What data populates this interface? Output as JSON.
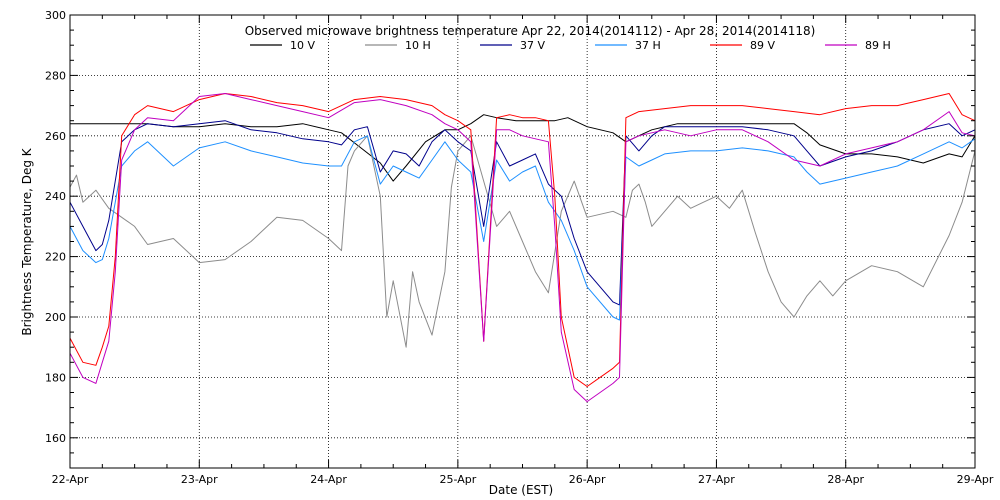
{
  "chart_data": {
    "type": "line",
    "title": "Observed microwave brightness temperature Apr 22, 2014(2014112) - Apr 28, 2014(2014118)",
    "xlabel": "Date (EST)",
    "ylabel": "Brightness Temperature, Deg K",
    "xlim": [
      0,
      7
    ],
    "ylim": [
      150,
      300
    ],
    "yticks": [
      160,
      180,
      200,
      220,
      240,
      260,
      280,
      300
    ],
    "ytick_labels": [
      "160",
      "180",
      "200",
      "220",
      "240",
      "260",
      "280",
      "300"
    ],
    "xticks": [
      0,
      1,
      2,
      3,
      4,
      5,
      6,
      7
    ],
    "xtick_labels": [
      "22-Apr",
      "23-Apr",
      "24-Apr",
      "25-Apr",
      "26-Apr",
      "27-Apr",
      "28-Apr",
      "29-Apr"
    ],
    "x_unit": "days since 22-Apr 00:00 EST",
    "grid": true,
    "legend_position": "top",
    "series": [
      {
        "name": "10 V",
        "color": "#000000",
        "x": [
          0,
          0.2,
          0.4,
          0.6,
          0.8,
          1.0,
          1.2,
          1.4,
          1.6,
          1.8,
          2.0,
          2.1,
          2.25,
          2.4,
          2.5,
          2.6,
          2.75,
          2.9,
          3.0,
          3.1,
          3.2,
          3.3,
          3.45,
          3.6,
          3.75,
          3.85,
          4.0,
          4.2,
          4.3,
          4.5,
          4.7,
          4.9,
          5.0,
          5.2,
          5.4,
          5.6,
          5.7,
          5.8,
          6.0,
          6.2,
          6.4,
          6.6,
          6.8,
          6.9,
          7.0
        ],
        "y": [
          264,
          264,
          264,
          264,
          263,
          263,
          264,
          263,
          263,
          264,
          262,
          261,
          256,
          251,
          245,
          250,
          258,
          262,
          262,
          264,
          267,
          266,
          265,
          265,
          265,
          266,
          263,
          261,
          258,
          262,
          264,
          264,
          264,
          264,
          264,
          264,
          261,
          257,
          254,
          254,
          253,
          251,
          254,
          253,
          260
        ]
      },
      {
        "name": "10 H",
        "color": "#8c8c8c",
        "x": [
          0,
          0.05,
          0.1,
          0.2,
          0.3,
          0.4,
          0.5,
          0.6,
          0.8,
          1.0,
          1.2,
          1.4,
          1.6,
          1.8,
          2.0,
          2.1,
          2.15,
          2.2,
          2.3,
          2.4,
          2.45,
          2.5,
          2.6,
          2.65,
          2.7,
          2.8,
          2.9,
          2.95,
          3.0,
          3.1,
          3.2,
          3.3,
          3.4,
          3.5,
          3.6,
          3.7,
          3.8,
          3.9,
          4.0,
          4.2,
          4.3,
          4.35,
          4.4,
          4.45,
          4.5,
          4.6,
          4.7,
          4.8,
          4.9,
          5.0,
          5.1,
          5.2,
          5.3,
          5.4,
          5.5,
          5.6,
          5.7,
          5.8,
          5.9,
          6.0,
          6.2,
          6.4,
          6.6,
          6.8,
          6.9,
          7.0
        ],
        "y": [
          243,
          247,
          238,
          242,
          236,
          233,
          230,
          224,
          226,
          218,
          219,
          225,
          233,
          232,
          226,
          222,
          250,
          255,
          260,
          240,
          200,
          212,
          190,
          215,
          205,
          194,
          215,
          243,
          255,
          260,
          245,
          230,
          235,
          225,
          215,
          208,
          235,
          245,
          233,
          235,
          233,
          242,
          244,
          238,
          230,
          235,
          240,
          236,
          238,
          240,
          236,
          242,
          228,
          215,
          205,
          200,
          207,
          212,
          207,
          212,
          217,
          215,
          210,
          227,
          238,
          255
        ]
      },
      {
        "name": "37 V",
        "color": "#00008b",
        "x": [
          0,
          0.1,
          0.2,
          0.25,
          0.3,
          0.4,
          0.5,
          0.6,
          0.8,
          1.0,
          1.2,
          1.4,
          1.6,
          1.8,
          2.0,
          2.1,
          2.2,
          2.3,
          2.4,
          2.5,
          2.6,
          2.7,
          2.8,
          2.9,
          3.0,
          3.1,
          3.2,
          3.3,
          3.4,
          3.5,
          3.6,
          3.7,
          3.8,
          3.9,
          4.0,
          4.2,
          4.25,
          4.3,
          4.4,
          4.5,
          4.6,
          4.8,
          5.0,
          5.2,
          5.4,
          5.6,
          5.7,
          5.8,
          6.0,
          6.2,
          6.4,
          6.6,
          6.8,
          6.9,
          7.0
        ],
        "y": [
          238,
          230,
          222,
          224,
          232,
          258,
          262,
          264,
          263,
          264,
          265,
          262,
          261,
          259,
          258,
          257,
          262,
          263,
          248,
          255,
          254,
          250,
          258,
          262,
          258,
          255,
          230,
          258,
          250,
          252,
          254,
          244,
          240,
          226,
          215,
          205,
          204,
          260,
          255,
          260,
          263,
          263,
          263,
          263,
          262,
          260,
          255,
          250,
          253,
          255,
          258,
          262,
          264,
          260,
          262
        ]
      },
      {
        "name": "37 H",
        "color": "#1e90ff",
        "x": [
          0,
          0.1,
          0.2,
          0.25,
          0.3,
          0.4,
          0.5,
          0.6,
          0.8,
          1.0,
          1.2,
          1.4,
          1.6,
          1.8,
          2.0,
          2.1,
          2.2,
          2.3,
          2.4,
          2.5,
          2.6,
          2.7,
          2.8,
          2.9,
          3.0,
          3.1,
          3.2,
          3.3,
          3.4,
          3.5,
          3.6,
          3.7,
          3.8,
          3.9,
          4.0,
          4.2,
          4.25,
          4.3,
          4.4,
          4.5,
          4.6,
          4.8,
          5.0,
          5.2,
          5.4,
          5.6,
          5.7,
          5.8,
          6.0,
          6.2,
          6.4,
          6.6,
          6.8,
          6.9,
          7.0
        ],
        "y": [
          230,
          222,
          218,
          219,
          226,
          250,
          255,
          258,
          250,
          256,
          258,
          255,
          253,
          251,
          250,
          250,
          258,
          260,
          244,
          250,
          248,
          246,
          252,
          258,
          252,
          248,
          225,
          252,
          245,
          248,
          250,
          238,
          232,
          222,
          210,
          200,
          199,
          253,
          250,
          252,
          254,
          255,
          255,
          256,
          255,
          253,
          248,
          244,
          246,
          248,
          250,
          254,
          258,
          256,
          259
        ]
      },
      {
        "name": "89 V",
        "color": "#ff0000",
        "x": [
          0,
          0.1,
          0.2,
          0.25,
          0.3,
          0.35,
          0.4,
          0.5,
          0.6,
          0.8,
          1.0,
          1.2,
          1.4,
          1.6,
          1.8,
          2.0,
          2.2,
          2.4,
          2.6,
          2.8,
          2.9,
          3.0,
          3.1,
          3.2,
          3.3,
          3.4,
          3.5,
          3.6,
          3.7,
          3.75,
          3.8,
          3.9,
          4.0,
          4.2,
          4.25,
          4.3,
          4.4,
          4.6,
          4.8,
          5.0,
          5.2,
          5.4,
          5.6,
          5.8,
          6.0,
          6.2,
          6.4,
          6.6,
          6.8,
          6.9,
          7.0
        ],
        "y": [
          193,
          185,
          184,
          190,
          197,
          220,
          260,
          267,
          270,
          268,
          272,
          274,
          273,
          271,
          270,
          268,
          272,
          273,
          272,
          270,
          267,
          265,
          262,
          192,
          266,
          267,
          266,
          266,
          265,
          240,
          200,
          180,
          177,
          183,
          185,
          266,
          268,
          269,
          270,
          270,
          270,
          269,
          268,
          267,
          269,
          270,
          270,
          272,
          274,
          267,
          265
        ]
      },
      {
        "name": "89 H",
        "color": "#c000c0",
        "x": [
          0,
          0.1,
          0.2,
          0.25,
          0.3,
          0.35,
          0.4,
          0.5,
          0.6,
          0.8,
          1.0,
          1.2,
          1.4,
          1.6,
          1.8,
          2.0,
          2.2,
          2.4,
          2.6,
          2.8,
          2.9,
          3.0,
          3.1,
          3.2,
          3.3,
          3.4,
          3.5,
          3.6,
          3.7,
          3.75,
          3.8,
          3.9,
          4.0,
          4.2,
          4.25,
          4.3,
          4.4,
          4.6,
          4.8,
          5.0,
          5.2,
          5.4,
          5.6,
          5.8,
          6.0,
          6.2,
          6.4,
          6.6,
          6.8,
          6.9,
          7.0
        ],
        "y": [
          188,
          180,
          178,
          185,
          192,
          215,
          252,
          262,
          266,
          265,
          273,
          274,
          272,
          270,
          268,
          266,
          271,
          272,
          270,
          267,
          264,
          262,
          258,
          192,
          262,
          262,
          260,
          259,
          258,
          230,
          195,
          176,
          172,
          178,
          180,
          258,
          260,
          262,
          260,
          262,
          262,
          258,
          252,
          250,
          254,
          256,
          258,
          262,
          268,
          261,
          260
        ]
      }
    ]
  }
}
